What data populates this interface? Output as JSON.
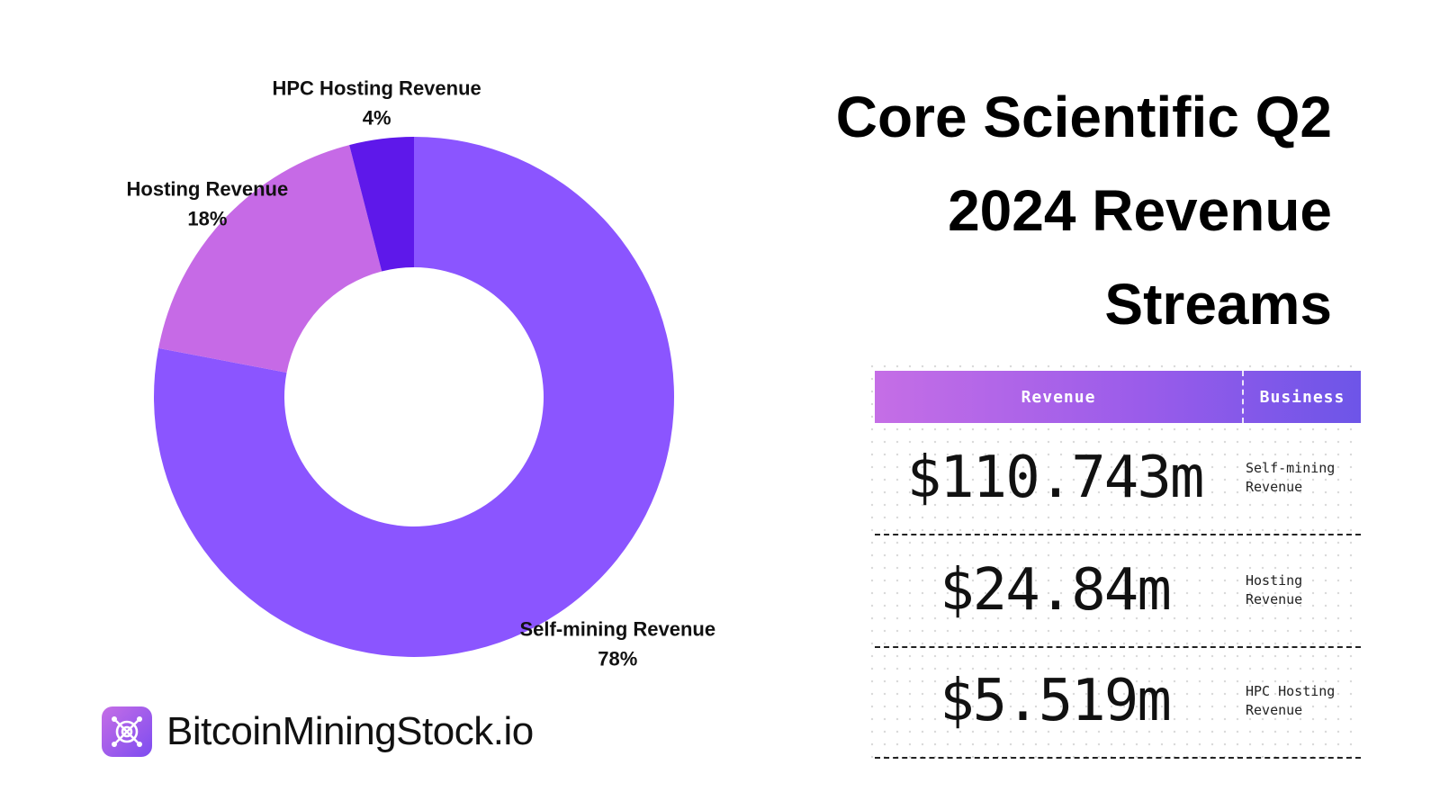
{
  "chart_data": {
    "type": "pie",
    "title": "Core Scientific Q2 2024 Revenue Streams",
    "slices": [
      {
        "name": "Self-mining Revenue",
        "value": 78,
        "label": "78%",
        "color": "#8b55ff"
      },
      {
        "name": "Hosting Revenue",
        "value": 18,
        "label": "18%",
        "color": "#c66ae6"
      },
      {
        "name": "HPC Hosting Revenue",
        "value": 4,
        "label": "4%",
        "color": "#5e18ea"
      }
    ]
  },
  "title_lines": [
    "Core Scientific Q2",
    "2024 Revenue",
    "Streams"
  ],
  "table": {
    "header_revenue": "Revenue",
    "header_business": "Business",
    "rows": [
      {
        "value": "$110.743m",
        "business_line1": "Self-mining",
        "business_line2": "Revenue"
      },
      {
        "value": "$24.84m",
        "business_line1": "Hosting",
        "business_line2": "Revenue"
      },
      {
        "value": "$5.519m",
        "business_line1": "HPC Hosting",
        "business_line2": "Revenue"
      }
    ]
  },
  "brand": {
    "name": "BitcoinMiningStock.io",
    "icon": "mining-logo-icon",
    "accent": "#8b55ff"
  }
}
